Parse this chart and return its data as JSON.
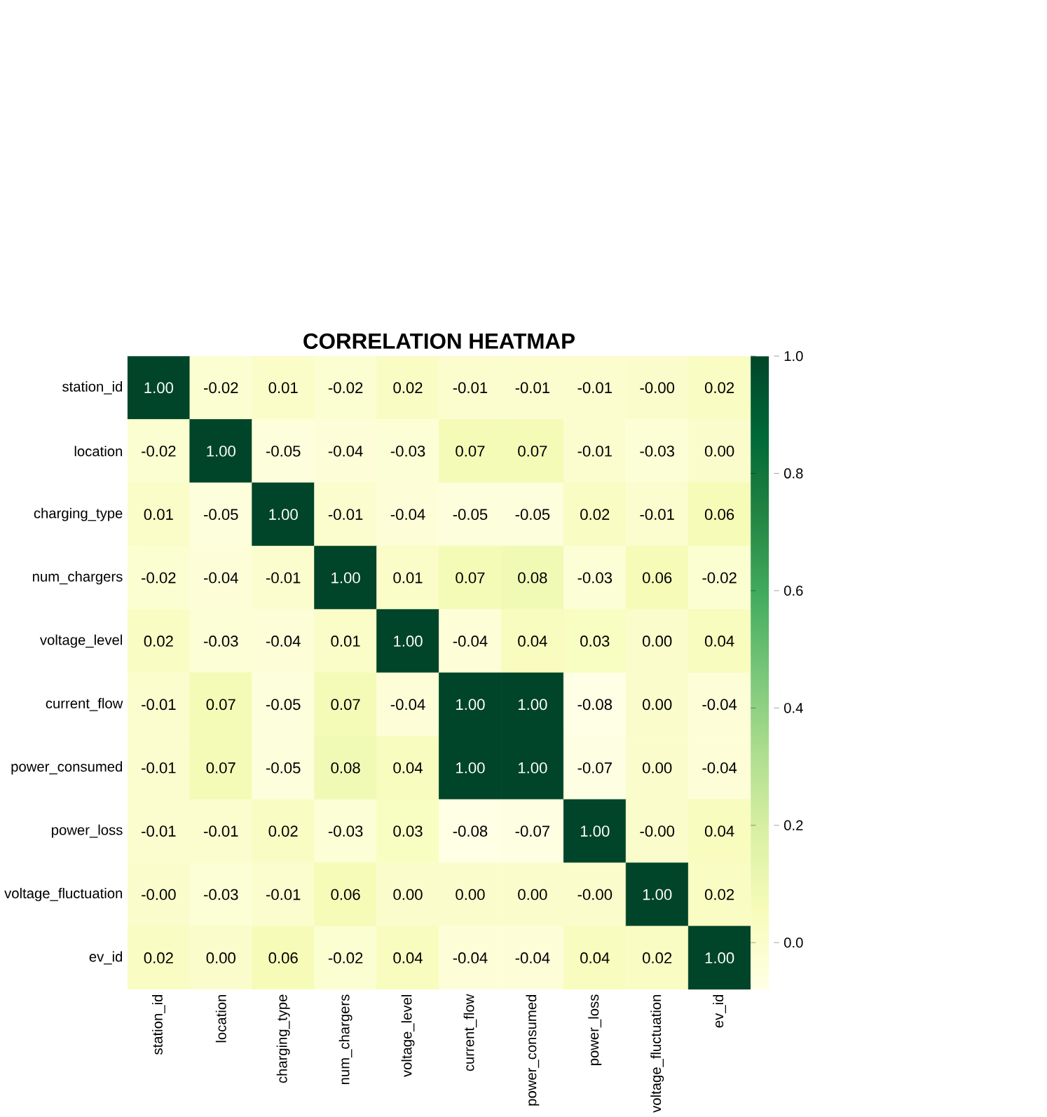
{
  "chart_data": {
    "type": "heatmap",
    "title": "CORRELATION HEATMAP",
    "categories": [
      "station_id",
      "location",
      "charging_type",
      "num_chargers",
      "voltage_level",
      "current_flow",
      "power_consumed",
      "power_loss",
      "voltage_fluctuation",
      "ev_id"
    ],
    "y_categories": [
      "station_id",
      "location",
      "charging_type",
      "num_chargers",
      "voltage_level",
      "current_flow",
      "power_consumed",
      "power_loss",
      "voltage_fluctuation",
      "ev_id"
    ],
    "cells": [
      [
        1.0,
        -0.02,
        0.01,
        -0.02,
        0.02,
        -0.01,
        -0.01,
        -0.01,
        0.0,
        0.02
      ],
      [
        -0.02,
        1.0,
        -0.05,
        -0.04,
        -0.03,
        0.07,
        0.07,
        -0.01,
        -0.03,
        0.0
      ],
      [
        0.01,
        -0.05,
        1.0,
        -0.01,
        -0.04,
        -0.05,
        -0.05,
        0.02,
        -0.01,
        0.06
      ],
      [
        -0.02,
        -0.04,
        -0.01,
        1.0,
        0.01,
        0.07,
        0.08,
        -0.03,
        0.06,
        -0.02
      ],
      [
        0.02,
        -0.03,
        -0.04,
        0.01,
        1.0,
        -0.04,
        0.04,
        0.03,
        0.0,
        0.04
      ],
      [
        -0.01,
        0.07,
        -0.05,
        0.07,
        -0.04,
        1.0,
        1.0,
        -0.08,
        0.0,
        -0.04
      ],
      [
        -0.01,
        0.07,
        -0.05,
        0.08,
        0.04,
        1.0,
        1.0,
        -0.07,
        0.0,
        -0.04
      ],
      [
        -0.01,
        -0.01,
        0.02,
        -0.03,
        0.03,
        -0.08,
        -0.07,
        1.0,
        0.0,
        0.04
      ],
      [
        0.0,
        -0.03,
        -0.01,
        0.06,
        0.0,
        0.0,
        0.0,
        0.0,
        1.0,
        0.02
      ],
      [
        0.02,
        0.0,
        0.06,
        -0.02,
        0.04,
        -0.04,
        -0.04,
        0.04,
        0.02,
        1.0
      ]
    ],
    "cell_labels": [
      [
        "1.00",
        "-0.02",
        "0.01",
        "-0.02",
        "0.02",
        "-0.01",
        "-0.01",
        "-0.01",
        "-0.00",
        "0.02"
      ],
      [
        "-0.02",
        "1.00",
        "-0.05",
        "-0.04",
        "-0.03",
        "0.07",
        "0.07",
        "-0.01",
        "-0.03",
        "0.00"
      ],
      [
        "0.01",
        "-0.05",
        "1.00",
        "-0.01",
        "-0.04",
        "-0.05",
        "-0.05",
        "0.02",
        "-0.01",
        "0.06"
      ],
      [
        "-0.02",
        "-0.04",
        "-0.01",
        "1.00",
        "0.01",
        "0.07",
        "0.08",
        "-0.03",
        "0.06",
        "-0.02"
      ],
      [
        "0.02",
        "-0.03",
        "-0.04",
        "0.01",
        "1.00",
        "-0.04",
        "0.04",
        "0.03",
        "0.00",
        "0.04"
      ],
      [
        "-0.01",
        "0.07",
        "-0.05",
        "0.07",
        "-0.04",
        "1.00",
        "1.00",
        "-0.08",
        "0.00",
        "-0.04"
      ],
      [
        "-0.01",
        "0.07",
        "-0.05",
        "0.08",
        "0.04",
        "1.00",
        "1.00",
        "-0.07",
        "0.00",
        "-0.04"
      ],
      [
        "-0.01",
        "-0.01",
        "0.02",
        "-0.03",
        "0.03",
        "-0.08",
        "-0.07",
        "1.00",
        "-0.00",
        "0.04"
      ],
      [
        "-0.00",
        "-0.03",
        "-0.01",
        "0.06",
        "0.00",
        "0.00",
        "0.00",
        "-0.00",
        "1.00",
        "0.02"
      ],
      [
        "0.02",
        "0.00",
        "0.06",
        "-0.02",
        "0.04",
        "-0.04",
        "-0.04",
        "0.04",
        "0.02",
        "1.00"
      ]
    ],
    "clim": [
      -0.08,
      1.0
    ],
    "cticks": [
      {
        "value": 0.0,
        "label": "0.0"
      },
      {
        "value": 0.2,
        "label": "0.2"
      },
      {
        "value": 0.4,
        "label": "0.4"
      },
      {
        "value": 0.6,
        "label": "0.6"
      },
      {
        "value": 0.8,
        "label": "0.8"
      },
      {
        "value": 1.0,
        "label": "1.0"
      }
    ]
  }
}
